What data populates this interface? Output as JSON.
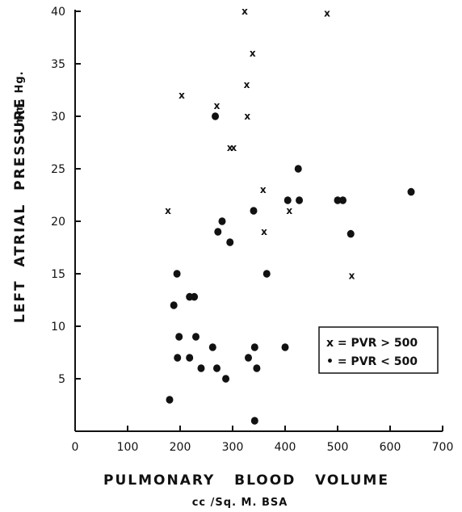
{
  "chart_data": {
    "type": "scatter",
    "xlabel": "PULMONARY   BLOOD   VOLUME",
    "xunit": "cc /Sq. M. BSA",
    "ylabel": "LEFT  ATRIAL  PRESSURE",
    "yunit": "- mm. Hg.",
    "xlim": [
      0,
      700
    ],
    "ylim": [
      0,
      40
    ],
    "xticks": [
      "0",
      "100",
      "200",
      "300",
      "400",
      "500",
      "600",
      "700"
    ],
    "yticks": [
      "5",
      "10",
      "15",
      "20",
      "25",
      "30",
      "35",
      "40"
    ],
    "grid": false,
    "legend_position": "lower-right",
    "legend": [
      {
        "marker": "x",
        "text": "x = PVR > 500"
      },
      {
        "marker": "dot",
        "text": "• = PVR < 500"
      }
    ],
    "series": [
      {
        "name": "PVR > 500",
        "marker": "x",
        "points": [
          [
            323,
            40
          ],
          [
            480,
            39.8
          ],
          [
            338,
            36
          ],
          [
            327,
            33
          ],
          [
            203,
            32
          ],
          [
            270,
            31
          ],
          [
            328,
            30
          ],
          [
            295,
            27
          ],
          [
            302,
            27
          ],
          [
            177,
            21
          ],
          [
            358,
            23
          ],
          [
            408,
            21
          ],
          [
            360,
            19
          ],
          [
            527,
            14.8
          ]
        ]
      },
      {
        "name": "PVR < 500",
        "marker": "dot",
        "points": [
          [
            267,
            30
          ],
          [
            425,
            25
          ],
          [
            340,
            21
          ],
          [
            405,
            22
          ],
          [
            427,
            22
          ],
          [
            500,
            22
          ],
          [
            510,
            22
          ],
          [
            640,
            22.8
          ],
          [
            280,
            20
          ],
          [
            272,
            19
          ],
          [
            295,
            18
          ],
          [
            525,
            18.8
          ],
          [
            194,
            15
          ],
          [
            365,
            15
          ],
          [
            188,
            12
          ],
          [
            218,
            12.8
          ],
          [
            227,
            12.8
          ],
          [
            198,
            9
          ],
          [
            230,
            9
          ],
          [
            195,
            7
          ],
          [
            218,
            7
          ],
          [
            262,
            8
          ],
          [
            330,
            7
          ],
          [
            342,
            8
          ],
          [
            400,
            8
          ],
          [
            240,
            6
          ],
          [
            270,
            6
          ],
          [
            346,
            6
          ],
          [
            287,
            5
          ],
          [
            180,
            3
          ],
          [
            342,
            1
          ]
        ]
      }
    ]
  }
}
